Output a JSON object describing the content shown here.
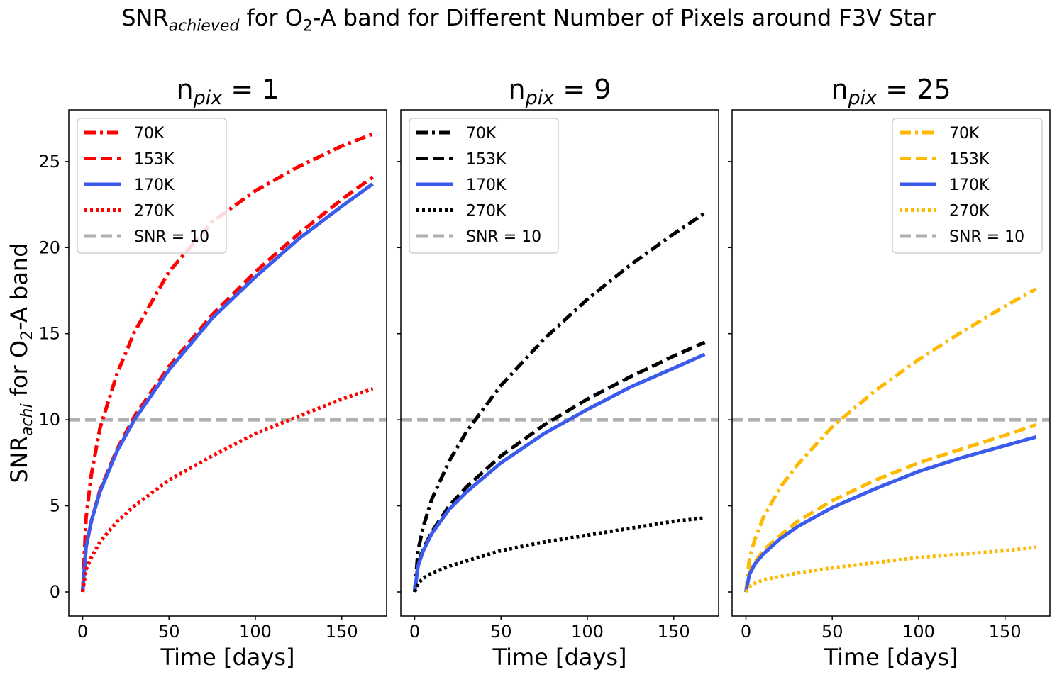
{
  "figure": {
    "suptitle": {
      "snr": "SNR",
      "snr_sub": "achieved",
      "part1": " for O",
      "o2_sub": "2",
      "part2": "-A band for Different Number of Pixels around F3V Star"
    },
    "ylabel": {
      "snr": "SNR",
      "snr_sub": "achi",
      "part1": " for O",
      "o2_sub": "2",
      "part2": "-A band"
    },
    "xlabel": "Time [days]",
    "colors": {
      "highlight": "#3b5bec",
      "threshold": "#b0b0b0"
    }
  },
  "chart_data": [
    {
      "type": "line",
      "title": {
        "base": "n",
        "sub": "pix",
        "rest": " = 1"
      },
      "xlabel": "Time [days]",
      "xlim": [
        -8,
        176
      ],
      "ylim": [
        -1.4,
        28
      ],
      "xticks": [
        0,
        50,
        100,
        150
      ],
      "yticks": [
        0,
        5,
        10,
        15,
        20,
        25
      ],
      "legend_position": "top-left",
      "threshold": {
        "name": "SNR = 10",
        "y": 10,
        "color": "#b0b0b0",
        "style": "dashed"
      },
      "series": [
        {
          "name": "70K",
          "color": "#ff0000",
          "style": "dashdot",
          "x": [
            0,
            2,
            5,
            10,
            20,
            30,
            50,
            75,
            100,
            125,
            150,
            168
          ],
          "y": [
            0,
            4.3,
            6.8,
            9.5,
            12.7,
            15.1,
            18.6,
            21.5,
            23.3,
            24.7,
            25.9,
            26.6
          ]
        },
        {
          "name": "153K",
          "color": "#ff0000",
          "style": "dashed",
          "x": [
            0,
            2,
            5,
            10,
            20,
            30,
            50,
            75,
            100,
            125,
            150,
            168
          ],
          "y": [
            0,
            2.6,
            4.1,
            5.9,
            8.3,
            10.2,
            13.1,
            16.1,
            18.6,
            20.8,
            22.8,
            24.1
          ]
        },
        {
          "name": "170K",
          "color": "#3b5bec",
          "style": "solid",
          "x": [
            0,
            2,
            5,
            10,
            20,
            30,
            50,
            75,
            100,
            125,
            150,
            168
          ],
          "y": [
            0,
            2.6,
            4.1,
            5.8,
            8.2,
            10.0,
            12.9,
            15.9,
            18.3,
            20.5,
            22.4,
            23.7
          ]
        },
        {
          "name": "270K",
          "color": "#ff0000",
          "style": "dotted",
          "x": [
            0,
            2,
            5,
            10,
            20,
            30,
            50,
            75,
            100,
            125,
            150,
            168
          ],
          "y": [
            0,
            1.3,
            2.0,
            2.9,
            4.1,
            5.0,
            6.5,
            7.9,
            9.2,
            10.2,
            11.2,
            11.8
          ]
        }
      ]
    },
    {
      "type": "line",
      "title": {
        "base": "n",
        "sub": "pix",
        "rest": " = 9"
      },
      "xlabel": "Time [days]",
      "xlim": [
        -8,
        176
      ],
      "ylim": [
        -1.4,
        28
      ],
      "xticks": [
        0,
        50,
        100,
        150
      ],
      "yticks": [
        0,
        5,
        10,
        15,
        20,
        25
      ],
      "legend_position": "top-left",
      "threshold": {
        "name": "SNR = 10",
        "y": 10,
        "color": "#b0b0b0",
        "style": "dashed"
      },
      "series": [
        {
          "name": "70K",
          "color": "#000000",
          "style": "dashdot",
          "x": [
            0,
            2,
            5,
            10,
            20,
            30,
            50,
            75,
            100,
            125,
            150,
            168
          ],
          "y": [
            0,
            2.4,
            3.8,
            5.4,
            7.6,
            9.3,
            12.0,
            14.7,
            17.0,
            19.0,
            20.8,
            22.0
          ]
        },
        {
          "name": "153K",
          "color": "#000000",
          "style": "dashed",
          "x": [
            0,
            2,
            5,
            10,
            20,
            30,
            50,
            75,
            100,
            125,
            150,
            168
          ],
          "y": [
            0,
            1.6,
            2.5,
            3.5,
            5.0,
            6.1,
            7.9,
            9.7,
            11.2,
            12.5,
            13.7,
            14.5
          ]
        },
        {
          "name": "170K",
          "color": "#3b5bec",
          "style": "solid",
          "x": [
            0,
            2,
            5,
            10,
            20,
            30,
            50,
            75,
            100,
            125,
            150,
            168
          ],
          "y": [
            0,
            1.5,
            2.4,
            3.4,
            4.8,
            5.8,
            7.5,
            9.2,
            10.6,
            11.9,
            13.0,
            13.8
          ]
        },
        {
          "name": "270K",
          "color": "#000000",
          "style": "dotted",
          "x": [
            0,
            2,
            5,
            10,
            20,
            30,
            50,
            75,
            100,
            125,
            150,
            168
          ],
          "y": [
            0,
            0.5,
            0.8,
            1.1,
            1.5,
            1.8,
            2.4,
            2.9,
            3.3,
            3.7,
            4.1,
            4.3
          ]
        }
      ]
    },
    {
      "type": "line",
      "title": {
        "base": "n",
        "sub": "pix",
        "rest": " = 25"
      },
      "xlabel": "Time [days]",
      "xlim": [
        -8,
        176
      ],
      "ylim": [
        -1.4,
        28
      ],
      "xticks": [
        0,
        50,
        100,
        150
      ],
      "yticks": [
        0,
        5,
        10,
        15,
        20,
        25
      ],
      "legend_position": "top-right",
      "threshold": {
        "name": "SNR = 10",
        "y": 10,
        "color": "#b0b0b0",
        "style": "dashed"
      },
      "series": [
        {
          "name": "70K",
          "color": "#ffb900",
          "style": "dashdot",
          "x": [
            0,
            2,
            5,
            10,
            20,
            30,
            50,
            75,
            100,
            125,
            150,
            168
          ],
          "y": [
            0,
            1.9,
            3.0,
            4.3,
            6.1,
            7.4,
            9.6,
            11.7,
            13.5,
            15.1,
            16.6,
            17.6
          ]
        },
        {
          "name": "153K",
          "color": "#ffb900",
          "style": "dashed",
          "x": [
            0,
            2,
            5,
            10,
            20,
            30,
            50,
            75,
            100,
            125,
            150,
            168
          ],
          "y": [
            0,
            1.1,
            1.7,
            2.4,
            3.3,
            4.1,
            5.3,
            6.5,
            7.5,
            8.3,
            9.1,
            9.7
          ]
        },
        {
          "name": "170K",
          "color": "#3b5bec",
          "style": "solid",
          "x": [
            0,
            2,
            5,
            10,
            20,
            30,
            50,
            75,
            100,
            125,
            150,
            168
          ],
          "y": [
            0,
            1.0,
            1.6,
            2.2,
            3.1,
            3.8,
            4.9,
            6.0,
            7.0,
            7.8,
            8.5,
            9.0
          ]
        },
        {
          "name": "270K",
          "color": "#ffb900",
          "style": "dotted",
          "x": [
            0,
            2,
            5,
            10,
            20,
            30,
            50,
            75,
            100,
            125,
            150,
            168
          ],
          "y": [
            0,
            0.3,
            0.5,
            0.7,
            0.9,
            1.1,
            1.4,
            1.7,
            2.0,
            2.2,
            2.4,
            2.6
          ]
        }
      ]
    }
  ]
}
